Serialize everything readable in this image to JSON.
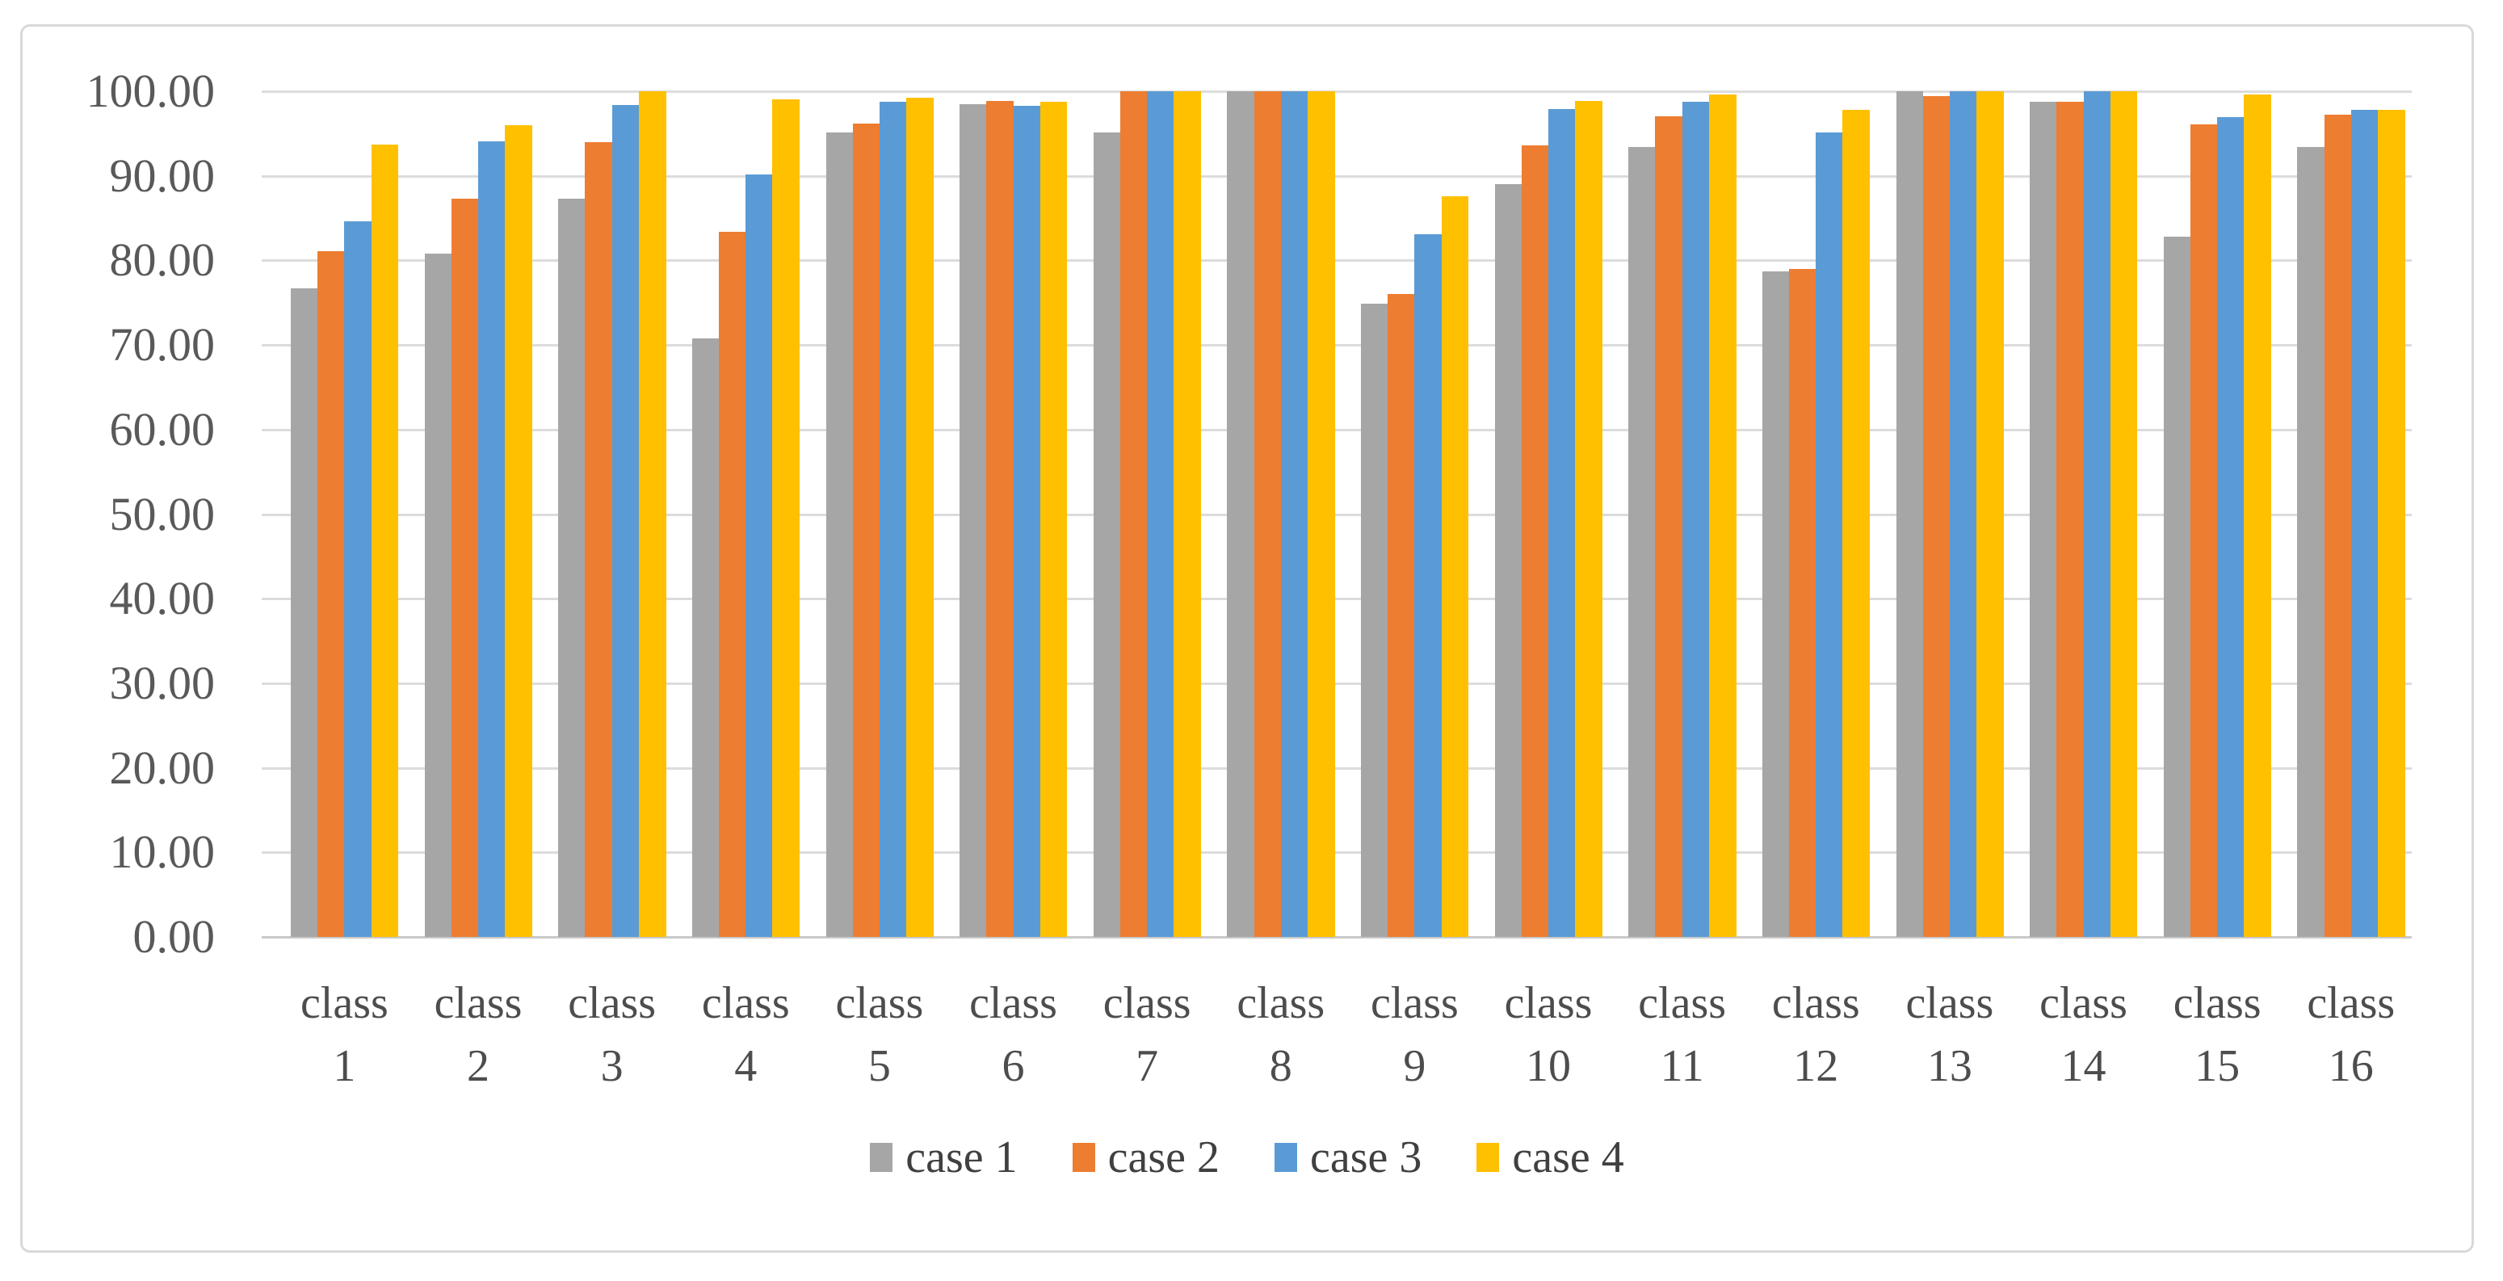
{
  "chart_data": {
    "type": "bar",
    "title": "",
    "xlabel": "",
    "ylabel": "",
    "ylim": [
      0,
      100
    ],
    "ytick_step": 10,
    "y_ticks": [
      "0.00",
      "10.00",
      "20.00",
      "30.00",
      "40.00",
      "50.00",
      "60.00",
      "70.00",
      "80.00",
      "90.00",
      "100.00"
    ],
    "grid": true,
    "legend_position": "bottom",
    "categories": [
      {
        "top": "class",
        "bottom": "1"
      },
      {
        "top": "class",
        "bottom": "2"
      },
      {
        "top": "class",
        "bottom": "3"
      },
      {
        "top": "class",
        "bottom": "4"
      },
      {
        "top": "class",
        "bottom": "5"
      },
      {
        "top": "class",
        "bottom": "6"
      },
      {
        "top": "class",
        "bottom": "7"
      },
      {
        "top": "class",
        "bottom": "8"
      },
      {
        "top": "class",
        "bottom": "9"
      },
      {
        "top": "class",
        "bottom": "10"
      },
      {
        "top": "class",
        "bottom": "11"
      },
      {
        "top": "class",
        "bottom": "12"
      },
      {
        "top": "class",
        "bottom": "13"
      },
      {
        "top": "class",
        "bottom": "14"
      },
      {
        "top": "class",
        "bottom": "15"
      },
      {
        "top": "class",
        "bottom": "16"
      }
    ],
    "series": [
      {
        "name": "case 1",
        "color": "#a6a6a6",
        "values": [
          76.7,
          80.8,
          87.3,
          70.8,
          95.1,
          98.5,
          95.1,
          100.0,
          74.9,
          89.0,
          93.4,
          78.7,
          100.0,
          98.8,
          82.8,
          93.4
        ]
      },
      {
        "name": "case 2",
        "color": "#ed7d31",
        "values": [
          81.1,
          87.3,
          94.0,
          83.4,
          96.2,
          98.9,
          100.0,
          100.0,
          76.0,
          93.6,
          97.0,
          79.0,
          99.4,
          98.8,
          96.1,
          97.2
        ]
      },
      {
        "name": "case 3",
        "color": "#5b9bd5",
        "values": [
          84.6,
          94.1,
          98.4,
          90.2,
          98.8,
          98.3,
          100.0,
          100.0,
          83.1,
          97.9,
          98.8,
          95.1,
          100.0,
          100.0,
          96.9,
          97.8
        ]
      },
      {
        "name": "case 4",
        "color": "#ffc000",
        "values": [
          93.7,
          96.0,
          100.0,
          99.0,
          99.2,
          98.8,
          100.0,
          100.0,
          87.6,
          98.9,
          99.6,
          97.8,
          100.0,
          100.0,
          99.6,
          97.8
        ]
      }
    ],
    "colors": {
      "gridline": "#dcdcdc",
      "axis_line": "#c9c9c9",
      "tick_text": "#595959",
      "category_text": "#4d4d4d",
      "legend_text": "#404040",
      "frame_border": "#d9d9d9",
      "background": "#ffffff"
    }
  }
}
